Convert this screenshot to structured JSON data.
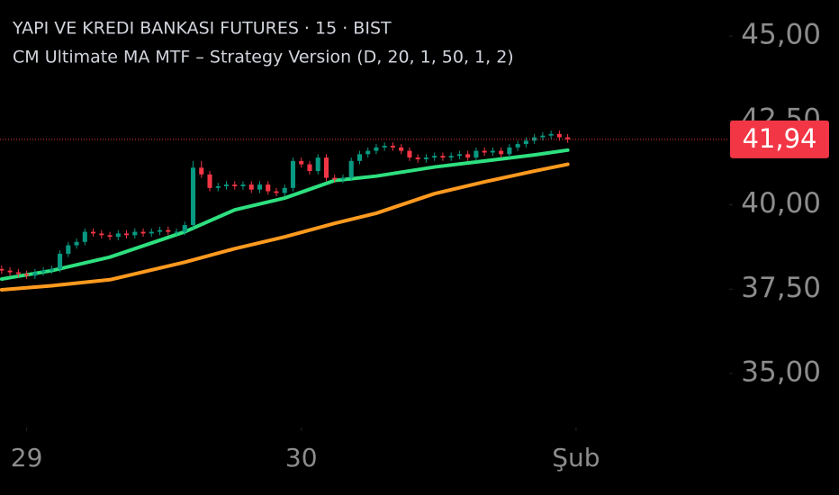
{
  "chart_data": {
    "type": "candlestick",
    "title": "YAPI VE KREDI BANKASI FUTURES · 15 · BIST",
    "subtitle": "CM Ultimate MA MTF – Strategy Version (D, 20, 1, 50, 1, 2)",
    "x": [
      0,
      1,
      2,
      3,
      4,
      5,
      6,
      7,
      8,
      9,
      10,
      11,
      12,
      13,
      14,
      15,
      16,
      17,
      18,
      19,
      20,
      21,
      22,
      23,
      24,
      25,
      26,
      27,
      28,
      29,
      30,
      31,
      32,
      33,
      34,
      35,
      36,
      37,
      38,
      39,
      40,
      41,
      42,
      43,
      44,
      45,
      46,
      47,
      48,
      49,
      50,
      51,
      52,
      53,
      54,
      55,
      56,
      57,
      58,
      59,
      60,
      61,
      62,
      63,
      64,
      65,
      66,
      67,
      68
    ],
    "open": [
      38.1,
      38.05,
      38.0,
      37.95,
      37.9,
      38.0,
      38.05,
      38.1,
      38.55,
      38.8,
      38.9,
      39.2,
      39.15,
      39.1,
      39.05,
      39.15,
      39.1,
      39.2,
      39.15,
      39.2,
      39.25,
      39.2,
      39.2,
      39.4,
      41.1,
      40.9,
      40.5,
      40.55,
      40.6,
      40.55,
      40.6,
      40.45,
      40.6,
      40.4,
      40.35,
      40.5,
      41.3,
      41.2,
      41.0,
      41.4,
      40.8,
      40.75,
      40.8,
      41.3,
      41.5,
      41.6,
      41.7,
      41.75,
      41.7,
      41.6,
      41.4,
      41.35,
      41.4,
      41.45,
      41.4,
      41.45,
      41.5,
      41.4,
      41.6,
      41.55,
      41.6,
      41.5,
      41.7,
      41.8,
      41.9,
      42.0,
      42.05,
      42.1,
      42.0
    ],
    "high": [
      38.2,
      38.15,
      38.1,
      38.05,
      38.1,
      38.15,
      38.2,
      38.65,
      38.9,
      39.0,
      39.3,
      39.3,
      39.25,
      39.2,
      39.25,
      39.25,
      39.3,
      39.3,
      39.3,
      39.35,
      39.35,
      39.3,
      39.5,
      41.3,
      41.3,
      41.0,
      40.65,
      40.7,
      40.7,
      40.7,
      40.7,
      40.7,
      40.7,
      40.5,
      40.6,
      41.4,
      41.4,
      41.3,
      41.5,
      41.5,
      40.9,
      40.9,
      41.4,
      41.6,
      41.7,
      41.8,
      41.85,
      41.85,
      41.8,
      41.7,
      41.5,
      41.5,
      41.55,
      41.55,
      41.55,
      41.6,
      41.6,
      41.7,
      41.7,
      41.7,
      41.7,
      41.8,
      41.9,
      42.0,
      42.1,
      42.15,
      42.2,
      42.2,
      42.1
    ],
    "low": [
      37.95,
      37.9,
      37.85,
      37.8,
      37.8,
      37.9,
      37.95,
      38.0,
      38.45,
      38.7,
      38.8,
      39.05,
      39.0,
      38.95,
      38.95,
      39.0,
      39.0,
      39.05,
      39.05,
      39.1,
      39.1,
      39.1,
      39.1,
      39.3,
      40.8,
      40.4,
      40.4,
      40.45,
      40.45,
      40.45,
      40.35,
      40.35,
      40.3,
      40.25,
      40.25,
      40.4,
      41.1,
      40.9,
      40.9,
      40.7,
      40.65,
      40.65,
      40.7,
      41.2,
      41.4,
      41.5,
      41.6,
      41.6,
      41.5,
      41.3,
      41.25,
      41.25,
      41.3,
      41.3,
      41.3,
      41.35,
      41.3,
      41.3,
      41.45,
      41.45,
      41.4,
      41.4,
      41.6,
      41.7,
      41.8,
      41.9,
      41.95,
      41.9,
      41.84
    ],
    "close": [
      38.05,
      38.0,
      37.95,
      37.9,
      38.0,
      38.05,
      38.1,
      38.55,
      38.8,
      38.9,
      39.2,
      39.15,
      39.1,
      39.05,
      39.15,
      39.1,
      39.2,
      39.15,
      39.2,
      39.25,
      39.2,
      39.2,
      39.4,
      41.1,
      40.9,
      40.5,
      40.55,
      40.6,
      40.55,
      40.6,
      40.45,
      40.6,
      40.4,
      40.35,
      40.5,
      41.3,
      41.2,
      41.0,
      41.4,
      40.8,
      40.75,
      40.8,
      41.3,
      41.5,
      41.6,
      41.7,
      41.75,
      41.7,
      41.6,
      41.4,
      41.35,
      41.4,
      41.45,
      41.4,
      41.45,
      41.5,
      41.4,
      41.6,
      41.55,
      41.6,
      41.5,
      41.7,
      41.8,
      41.9,
      42.0,
      42.05,
      42.1,
      42.0,
      41.94
    ],
    "up_color": "#089981",
    "down_color": "#f23645",
    "series": [
      {
        "type": "line",
        "color": "#2ee07f",
        "x": [
          0,
          6,
          13,
          22,
          28,
          34,
          40,
          45,
          52,
          58,
          64,
          68
        ],
        "values": [
          37.8,
          38.05,
          38.45,
          39.2,
          39.85,
          40.2,
          40.72,
          40.85,
          41.12,
          41.3,
          41.48,
          41.62
        ]
      },
      {
        "type": "line",
        "color": "#ff9a1f",
        "x": [
          0,
          6,
          13,
          22,
          28,
          34,
          40,
          45,
          52,
          58,
          64,
          68
        ],
        "values": [
          37.48,
          37.6,
          37.78,
          38.3,
          38.7,
          39.05,
          39.45,
          39.75,
          40.33,
          40.68,
          41.0,
          41.2
        ]
      }
    ],
    "last_price": 41.94,
    "last_price_label": "41,94",
    "xlim": [
      -0.2,
      87.4
    ],
    "xticks": [
      {
        "value": 3,
        "label": "29"
      },
      {
        "value": 36,
        "label": "30"
      },
      {
        "value": 69,
        "label": "Şub"
      }
    ],
    "ylim": [
      33.4,
      46.07
    ],
    "yticks": [
      {
        "value": 35,
        "label": "35,00"
      },
      {
        "value": 37.5,
        "label": "37,50"
      },
      {
        "value": 40,
        "label": "40,00"
      },
      {
        "value": 42.5,
        "label": "42,50"
      },
      {
        "value": 45,
        "label": "45,00"
      }
    ]
  }
}
